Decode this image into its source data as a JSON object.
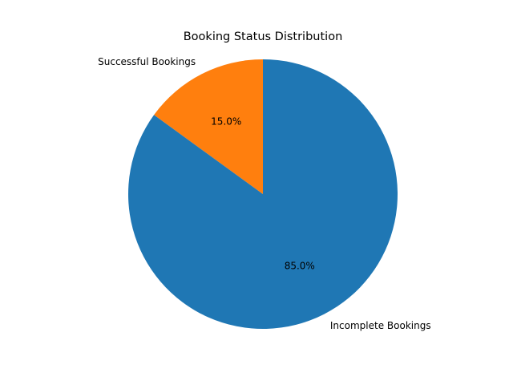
{
  "chart_data": {
    "type": "pie",
    "title": "Booking Status Distribution",
    "slices": [
      {
        "label": "Successful Bookings",
        "value": 15.0,
        "percent_label": "15.0%",
        "color": "#ff7f0e"
      },
      {
        "label": "Incomplete Bookings",
        "value": 85.0,
        "percent_label": "85.0%",
        "color": "#1f77b4"
      }
    ],
    "start_angle_deg": 90,
    "direction": "counterclockwise",
    "legend": "none"
  }
}
